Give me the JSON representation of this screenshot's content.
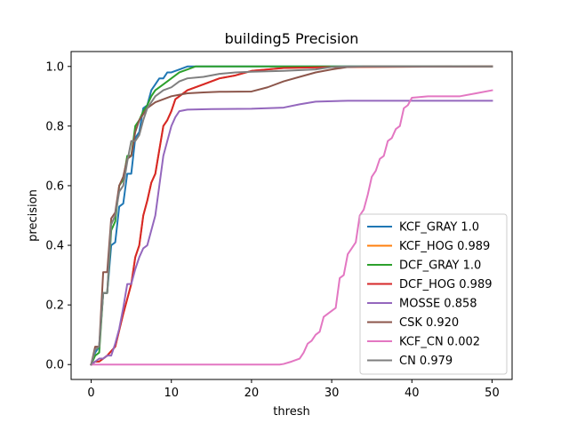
{
  "chart_data": {
    "type": "line",
    "title": "building5 Precision",
    "xlabel": "thresh",
    "ylabel": "precision",
    "xlim": [
      -2.5,
      52.5
    ],
    "ylim": [
      -0.05,
      1.05
    ],
    "x_ticks": [
      0,
      10,
      20,
      30,
      40,
      50
    ],
    "y_ticks": [
      0.0,
      0.2,
      0.4,
      0.6,
      0.8,
      1.0
    ],
    "x_tick_labels": [
      "0",
      "10",
      "20",
      "30",
      "40",
      "50"
    ],
    "y_tick_labels": [
      "0.0",
      "0.2",
      "0.4",
      "0.6",
      "0.8",
      "1.0"
    ],
    "grid": false,
    "legend_position": "lower-right",
    "series": [
      {
        "name": "KCF_GRAY 1.0",
        "color": "#1f77b4",
        "points": [
          [
            0,
            0
          ],
          [
            0.5,
            0.04
          ],
          [
            1,
            0.06
          ],
          [
            1.5,
            0.24
          ],
          [
            2,
            0.24
          ],
          [
            2.5,
            0.4
          ],
          [
            3,
            0.41
          ],
          [
            3.5,
            0.53
          ],
          [
            4,
            0.54
          ],
          [
            4.5,
            0.64
          ],
          [
            5,
            0.64
          ],
          [
            5.5,
            0.76
          ],
          [
            6,
            0.78
          ],
          [
            6.5,
            0.86
          ],
          [
            7,
            0.87
          ],
          [
            7.5,
            0.92
          ],
          [
            8,
            0.94
          ],
          [
            8.5,
            0.96
          ],
          [
            9,
            0.96
          ],
          [
            9.5,
            0.98
          ],
          [
            10,
            0.98
          ],
          [
            11,
            0.99
          ],
          [
            12,
            1.0
          ],
          [
            50,
            1.0
          ]
        ]
      },
      {
        "name": "KCF_HOG 0.989",
        "color": "#ff7f0e",
        "points": [
          [
            0,
            0
          ],
          [
            0.5,
            0.01
          ],
          [
            1,
            0.01
          ],
          [
            1.5,
            0.02
          ],
          [
            2,
            0.03
          ],
          [
            3,
            0.06
          ],
          [
            4,
            0.17
          ],
          [
            5,
            0.27
          ],
          [
            5.5,
            0.36
          ],
          [
            6,
            0.4
          ],
          [
            6.5,
            0.5
          ],
          [
            7,
            0.55
          ],
          [
            7.5,
            0.61
          ],
          [
            8,
            0.64
          ],
          [
            8.5,
            0.72
          ],
          [
            9,
            0.8
          ],
          [
            9.5,
            0.82
          ],
          [
            10,
            0.85
          ],
          [
            10.5,
            0.89
          ],
          [
            11,
            0.9
          ],
          [
            12,
            0.92
          ],
          [
            14,
            0.94
          ],
          [
            16,
            0.96
          ],
          [
            18,
            0.97
          ],
          [
            20,
            0.985
          ],
          [
            22,
            0.99
          ],
          [
            24,
            0.995
          ],
          [
            30,
            0.998
          ],
          [
            50,
            1.0
          ]
        ]
      },
      {
        "name": "DCF_GRAY 1.0",
        "color": "#2ca02c",
        "points": [
          [
            0,
            0
          ],
          [
            0.5,
            0.03
          ],
          [
            1,
            0.04
          ],
          [
            1.5,
            0.24
          ],
          [
            2,
            0.24
          ],
          [
            2.5,
            0.45
          ],
          [
            3,
            0.48
          ],
          [
            3.5,
            0.6
          ],
          [
            4,
            0.62
          ],
          [
            4.5,
            0.7
          ],
          [
            5,
            0.7
          ],
          [
            5.5,
            0.8
          ],
          [
            6,
            0.82
          ],
          [
            6.5,
            0.85
          ],
          [
            7,
            0.87
          ],
          [
            7.5,
            0.9
          ],
          [
            8,
            0.92
          ],
          [
            9,
            0.94
          ],
          [
            10,
            0.96
          ],
          [
            11,
            0.98
          ],
          [
            12,
            0.99
          ],
          [
            13,
            1.0
          ],
          [
            50,
            1.0
          ]
        ]
      },
      {
        "name": "DCF_HOG 0.989",
        "color": "#d62728",
        "points": [
          [
            0,
            0
          ],
          [
            0.5,
            0.01
          ],
          [
            1,
            0.01
          ],
          [
            1.5,
            0.02
          ],
          [
            2,
            0.03
          ],
          [
            3,
            0.06
          ],
          [
            4,
            0.17
          ],
          [
            5,
            0.27
          ],
          [
            5.5,
            0.36
          ],
          [
            6,
            0.4
          ],
          [
            6.5,
            0.5
          ],
          [
            7,
            0.55
          ],
          [
            7.5,
            0.61
          ],
          [
            8,
            0.64
          ],
          [
            8.5,
            0.72
          ],
          [
            9,
            0.8
          ],
          [
            9.5,
            0.82
          ],
          [
            10,
            0.85
          ],
          [
            10.5,
            0.89
          ],
          [
            11,
            0.9
          ],
          [
            12,
            0.92
          ],
          [
            14,
            0.94
          ],
          [
            16,
            0.96
          ],
          [
            18,
            0.97
          ],
          [
            20,
            0.985
          ],
          [
            22,
            0.99
          ],
          [
            24,
            0.995
          ],
          [
            30,
            0.998
          ],
          [
            50,
            1.0
          ]
        ]
      },
      {
        "name": "MOSSE 0.858",
        "color": "#9467bd",
        "points": [
          [
            0,
            0
          ],
          [
            0.5,
            0.01
          ],
          [
            1,
            0.02
          ],
          [
            1.5,
            0.02
          ],
          [
            2,
            0.03
          ],
          [
            2.5,
            0.03
          ],
          [
            3,
            0.07
          ],
          [
            3.5,
            0.12
          ],
          [
            4,
            0.19
          ],
          [
            4.5,
            0.27
          ],
          [
            5,
            0.27
          ],
          [
            5.5,
            0.32
          ],
          [
            6,
            0.36
          ],
          [
            6.5,
            0.39
          ],
          [
            7,
            0.4
          ],
          [
            7.5,
            0.45
          ],
          [
            8,
            0.5
          ],
          [
            8.5,
            0.6
          ],
          [
            9,
            0.7
          ],
          [
            9.5,
            0.75
          ],
          [
            10,
            0.8
          ],
          [
            10.5,
            0.83
          ],
          [
            11,
            0.85
          ],
          [
            12,
            0.855
          ],
          [
            15,
            0.857
          ],
          [
            20,
            0.858
          ],
          [
            24,
            0.862
          ],
          [
            26,
            0.873
          ],
          [
            28,
            0.882
          ],
          [
            32,
            0.885
          ],
          [
            50,
            0.885
          ]
        ]
      },
      {
        "name": "CSK 0.920",
        "color": "#8c564b",
        "points": [
          [
            0,
            0
          ],
          [
            0.5,
            0.06
          ],
          [
            1,
            0.06
          ],
          [
            1.5,
            0.31
          ],
          [
            2,
            0.31
          ],
          [
            2.5,
            0.49
          ],
          [
            3,
            0.51
          ],
          [
            3.5,
            0.6
          ],
          [
            4,
            0.63
          ],
          [
            4.5,
            0.69
          ],
          [
            5,
            0.7
          ],
          [
            5.5,
            0.78
          ],
          [
            6,
            0.82
          ],
          [
            6.5,
            0.84
          ],
          [
            7,
            0.86
          ],
          [
            7.5,
            0.87
          ],
          [
            8,
            0.88
          ],
          [
            9,
            0.89
          ],
          [
            10,
            0.9
          ],
          [
            11,
            0.905
          ],
          [
            12,
            0.91
          ],
          [
            14,
            0.913
          ],
          [
            16,
            0.915
          ],
          [
            20,
            0.916
          ],
          [
            22,
            0.93
          ],
          [
            24,
            0.95
          ],
          [
            26,
            0.965
          ],
          [
            28,
            0.98
          ],
          [
            30,
            0.99
          ],
          [
            32,
            0.998
          ],
          [
            34,
            1.0
          ],
          [
            50,
            1.0
          ]
        ]
      },
      {
        "name": "KCF_CN 0.002",
        "color": "#e377c2",
        "points": [
          [
            0,
            0
          ],
          [
            23.5,
            0
          ],
          [
            24,
            0.002
          ],
          [
            25,
            0.01
          ],
          [
            26,
            0.02
          ],
          [
            26.5,
            0.04
          ],
          [
            27,
            0.07
          ],
          [
            27.5,
            0.08
          ],
          [
            28,
            0.1
          ],
          [
            28.5,
            0.11
          ],
          [
            29,
            0.16
          ],
          [
            29.5,
            0.17
          ],
          [
            30,
            0.18
          ],
          [
            30.5,
            0.19
          ],
          [
            31,
            0.29
          ],
          [
            31.5,
            0.3
          ],
          [
            32,
            0.37
          ],
          [
            32.5,
            0.39
          ],
          [
            33,
            0.41
          ],
          [
            33.5,
            0.5
          ],
          [
            34,
            0.52
          ],
          [
            34.5,
            0.57
          ],
          [
            35,
            0.63
          ],
          [
            35.5,
            0.65
          ],
          [
            36,
            0.69
          ],
          [
            36.5,
            0.7
          ],
          [
            37,
            0.75
          ],
          [
            37.5,
            0.76
          ],
          [
            38,
            0.79
          ],
          [
            38.5,
            0.8
          ],
          [
            39,
            0.86
          ],
          [
            39.5,
            0.87
          ],
          [
            40,
            0.895
          ],
          [
            42,
            0.9
          ],
          [
            46,
            0.9
          ],
          [
            48,
            0.91
          ],
          [
            50,
            0.92
          ]
        ]
      },
      {
        "name": "CN 0.979",
        "color": "#7f7f7f",
        "points": [
          [
            0,
            0
          ],
          [
            0.5,
            0.05
          ],
          [
            1,
            0.06
          ],
          [
            1.5,
            0.24
          ],
          [
            2,
            0.24
          ],
          [
            2.5,
            0.47
          ],
          [
            3,
            0.5
          ],
          [
            3.5,
            0.58
          ],
          [
            4,
            0.6
          ],
          [
            4.5,
            0.68
          ],
          [
            5,
            0.75
          ],
          [
            5.5,
            0.75
          ],
          [
            6,
            0.77
          ],
          [
            6.5,
            0.82
          ],
          [
            7,
            0.86
          ],
          [
            7.5,
            0.88
          ],
          [
            8,
            0.9
          ],
          [
            9,
            0.92
          ],
          [
            10,
            0.93
          ],
          [
            11,
            0.95
          ],
          [
            12,
            0.96
          ],
          [
            14,
            0.965
          ],
          [
            16,
            0.975
          ],
          [
            18,
            0.98
          ],
          [
            20,
            0.982
          ],
          [
            24,
            0.985
          ],
          [
            28,
            0.99
          ],
          [
            30,
            0.998
          ],
          [
            32,
            1.0
          ],
          [
            50,
            1.0
          ]
        ]
      }
    ]
  }
}
